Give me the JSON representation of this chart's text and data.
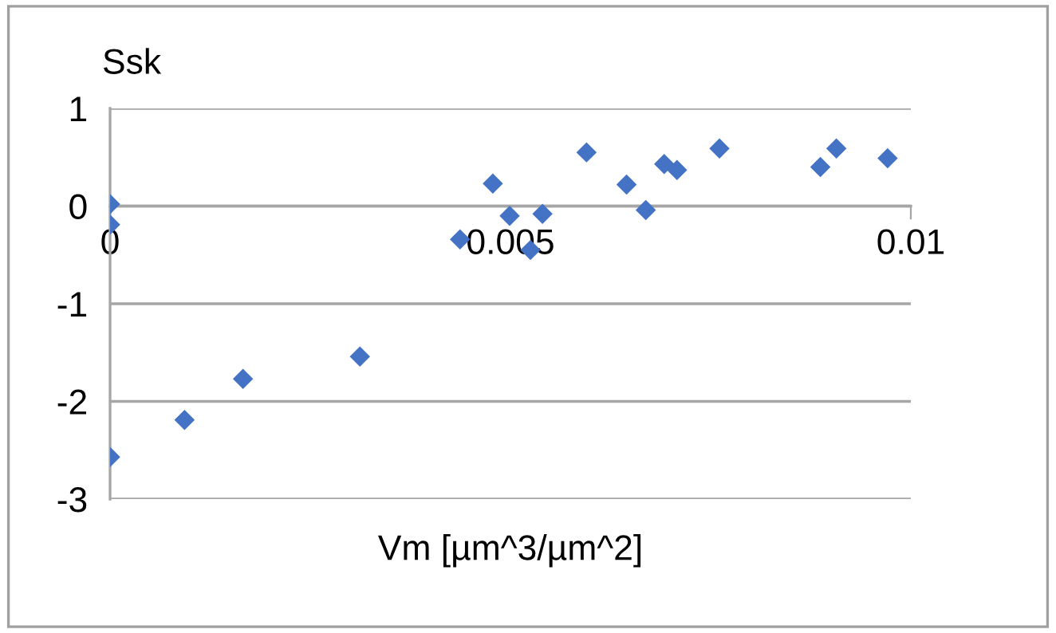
{
  "chart_data": {
    "type": "scatter",
    "xlabel": "Vm [µm^3/µm^2]",
    "ylabel": "Ssk",
    "x": [
      0,
      0,
      0,
      0.00093,
      0.00166,
      0.00312,
      0.00437,
      0.00478,
      0.00499,
      0.00525,
      0.0054,
      0.00595,
      0.00645,
      0.00669,
      0.00692,
      0.00708,
      0.00761,
      0.00887,
      0.00907,
      0.00971
    ],
    "series": [
      {
        "color": "#4472c4",
        "values": [
          0.02,
          -0.19,
          -2.57,
          -2.19,
          -1.77,
          -1.54,
          -0.34,
          0.23,
          -0.1,
          -0.45,
          -0.08,
          0.55,
          0.22,
          -0.04,
          0.43,
          0.37,
          0.59,
          0.4,
          0.59,
          0.49
        ]
      }
    ],
    "xlim": [
      0,
      0.01
    ],
    "xticks": [
      0,
      0.005,
      0.01
    ],
    "ylim": [
      -3,
      1
    ],
    "yticks": [
      -3,
      -2,
      -1,
      0,
      1
    ],
    "grid": "y",
    "marker": "diamond",
    "legend": false
  }
}
